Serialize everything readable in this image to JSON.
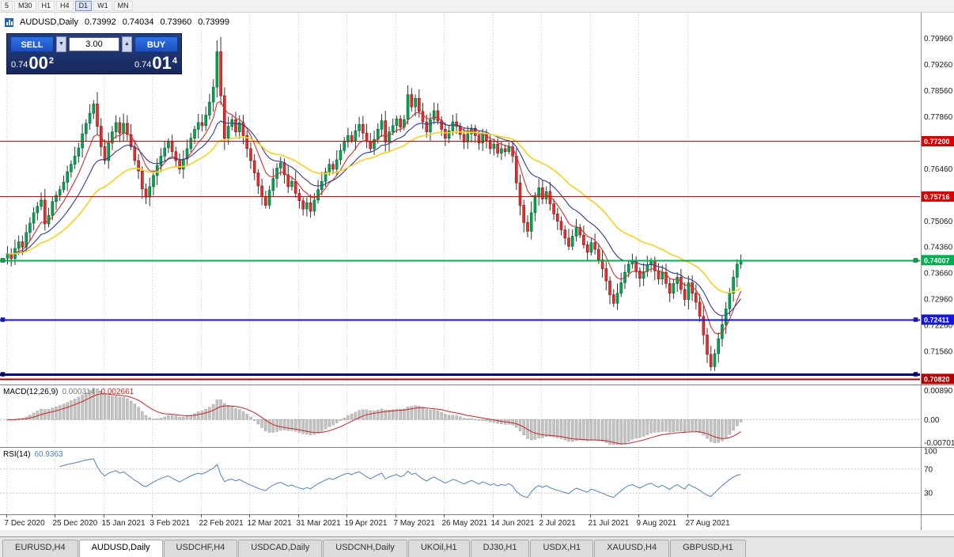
{
  "toolbar": {
    "timeframes": [
      "5",
      "M30",
      "H1",
      "H4",
      "D1",
      "W1",
      "MN"
    ],
    "active_timeframe": "D1"
  },
  "chart_header": {
    "symbol": "AUDUSD,Daily",
    "open": "0.73992",
    "high": "0.74034",
    "low": "0.73960",
    "close": "0.73999"
  },
  "trade_panel": {
    "sell_label": "SELL",
    "buy_label": "BUY",
    "volume": "3.00",
    "sell_price": {
      "base": "0.74",
      "pips": "00",
      "sup": "2"
    },
    "buy_price": {
      "base": "0.74",
      "pips": "01",
      "sup": "4"
    }
  },
  "icons": {
    "volume_down": "▼",
    "volume_up": "▲"
  },
  "indicators": {
    "macd": {
      "name": "MACD(12,26,9)",
      "value_main": "0.000314",
      "value_signal": "-0.002661",
      "scale_top": "0.00890",
      "scale_zero": "0.00",
      "scale_bottom": "-0.00701"
    },
    "rsi": {
      "name": "RSI(14)",
      "value": "60.9363",
      "scale_labels": [
        100,
        70,
        30
      ],
      "level_lines": [
        70,
        30
      ]
    }
  },
  "tabs": {
    "items": [
      "EURUSD,H4",
      "AUDUSD,Daily",
      "USDCHF,H4",
      "USDCAD,Daily",
      "USDCNH,Daily",
      "UKOil,H1",
      "DJ30,H1",
      "USDX,H1",
      "XAUUSD,H4",
      "GBPUSD,H1"
    ],
    "active": "AUDUSD,Daily"
  },
  "chart_data": {
    "type": "candlestick",
    "title": "AUDUSD Daily with MACD(12,26,9) and RSI(14)",
    "price_axis": {
      "top": 0.8065,
      "bottom": 0.7067,
      "ticks": [
        0.7996,
        0.7926,
        0.7856,
        0.7786,
        0.7646,
        0.7506,
        0.7436,
        0.7366,
        0.7296,
        0.7226,
        0.7156
      ]
    },
    "x_axis": {
      "labels": [
        "7 Dec 2020",
        "25 Dec 2020",
        "15 Jan 2021",
        "3 Feb 2021",
        "22 Feb 2021",
        "12 Mar 2021",
        "31 Mar 2021",
        "19 Apr 2021",
        "7 May 2021",
        "26 May 2021",
        "14 Jun 2021",
        "2 Jul 2021",
        "21 Jul 2021",
        "9 Aug 2021",
        "27 Aug 2021"
      ],
      "label_step": 13
    },
    "closes": [
      0.7418,
      0.7405,
      0.7432,
      0.745,
      0.7436,
      0.7475,
      0.75,
      0.7528,
      0.7545,
      0.7562,
      0.7498,
      0.7521,
      0.7558,
      0.7575,
      0.759,
      0.761,
      0.7638,
      0.7658,
      0.768,
      0.7702,
      0.774,
      0.7768,
      0.7795,
      0.782,
      0.776,
      0.7705,
      0.7668,
      0.7715,
      0.7745,
      0.777,
      0.7742,
      0.7768,
      0.7738,
      0.7705,
      0.7668,
      0.764,
      0.7592,
      0.757,
      0.7598,
      0.7628,
      0.7655,
      0.768,
      0.7702,
      0.7718,
      0.7692,
      0.7668,
      0.7645,
      0.7672,
      0.77,
      0.7728,
      0.7752,
      0.777,
      0.7762,
      0.779,
      0.7825,
      0.7865,
      0.796,
      0.7842,
      0.7728,
      0.776,
      0.7778,
      0.7745,
      0.777,
      0.7735,
      0.77,
      0.7668,
      0.7635,
      0.76,
      0.7572,
      0.7548,
      0.7588,
      0.762,
      0.7648,
      0.7662,
      0.763,
      0.7598,
      0.7612,
      0.758,
      0.756,
      0.7538,
      0.7555,
      0.7532,
      0.7562,
      0.759,
      0.7612,
      0.7638,
      0.7658,
      0.7645,
      0.767,
      0.7695,
      0.7718,
      0.7735,
      0.7722,
      0.7748,
      0.7765,
      0.7742,
      0.772,
      0.77,
      0.7725,
      0.7752,
      0.7775,
      0.7718,
      0.7745,
      0.7762,
      0.778,
      0.7758,
      0.7778,
      0.7845,
      0.7812,
      0.7835,
      0.78,
      0.7772,
      0.7745,
      0.7778,
      0.7802,
      0.7775,
      0.7752,
      0.7728,
      0.7748,
      0.7772,
      0.776,
      0.7738,
      0.7718,
      0.774,
      0.7755,
      0.7735,
      0.7715,
      0.7738,
      0.7722,
      0.77,
      0.7712,
      0.7688,
      0.77,
      0.7692,
      0.7705,
      0.768,
      0.7608,
      0.7548,
      0.7502,
      0.7478,
      0.7528,
      0.757,
      0.7595,
      0.7565,
      0.7585,
      0.7552,
      0.7525,
      0.7505,
      0.7482,
      0.746,
      0.7438,
      0.7465,
      0.7488,
      0.7468,
      0.7442,
      0.7422,
      0.7448,
      0.743,
      0.7402,
      0.7378,
      0.7345,
      0.7308,
      0.7285,
      0.7312,
      0.734,
      0.7368,
      0.739,
      0.74,
      0.7372,
      0.7352,
      0.737,
      0.7388,
      0.7398,
      0.7372,
      0.735,
      0.7368,
      0.7338,
      0.7312,
      0.7338,
      0.7355,
      0.7322,
      0.7295,
      0.734,
      0.7312,
      0.7288,
      0.725,
      0.72,
      0.7148,
      0.7115,
      0.715,
      0.719,
      0.7228,
      0.727,
      0.7312,
      0.7355,
      0.739,
      0.73999
    ],
    "levels": [
      {
        "price": 0.772,
        "label": "0.77200",
        "color": "#d90000",
        "width": 1,
        "handles": false
      },
      {
        "price": 0.75716,
        "label": "0.75716",
        "color": "#d90000",
        "width": 1,
        "handles": false
      },
      {
        "price": 0.74007,
        "label": "0.74007",
        "color": "#00b050",
        "width": 2,
        "handles": true
      },
      {
        "price": 0.72411,
        "label": "0.72411",
        "color": "#1414dc",
        "width": 2,
        "handles": true
      },
      {
        "price": 0.7095,
        "label": "",
        "color": "#000080",
        "width": 3,
        "handles": true
      },
      {
        "price": 0.7082,
        "label": "0.70820",
        "color": "#b30000",
        "width": 2,
        "handles": false
      }
    ],
    "moving_averages": [
      {
        "period": 8,
        "color": "#cc3333",
        "width": 1.1
      },
      {
        "period": 17,
        "color": "#2c3e8c",
        "width": 1.1
      },
      {
        "period": 34,
        "color": "#f5d327",
        "width": 1.7
      }
    ],
    "macd": {
      "params": [
        12,
        26,
        9
      ],
      "range_top": 0.0089,
      "range_bottom": -0.00701,
      "histogram_color": "#c4c4c4",
      "histogram_stroke": "#9e9e9e",
      "signal_color": "#cc2222"
    },
    "rsi": {
      "period": 14,
      "color": "#4f81bd"
    }
  },
  "colors": {
    "up_candle": "#00a651",
    "up_stroke": "#006b33",
    "down_candle": "#e53030",
    "down_stroke": "#8f0f0f",
    "wick": "#333333",
    "grid": "#d6d6d6",
    "scale_text": "#1a1a1a",
    "separator": "#808080"
  }
}
